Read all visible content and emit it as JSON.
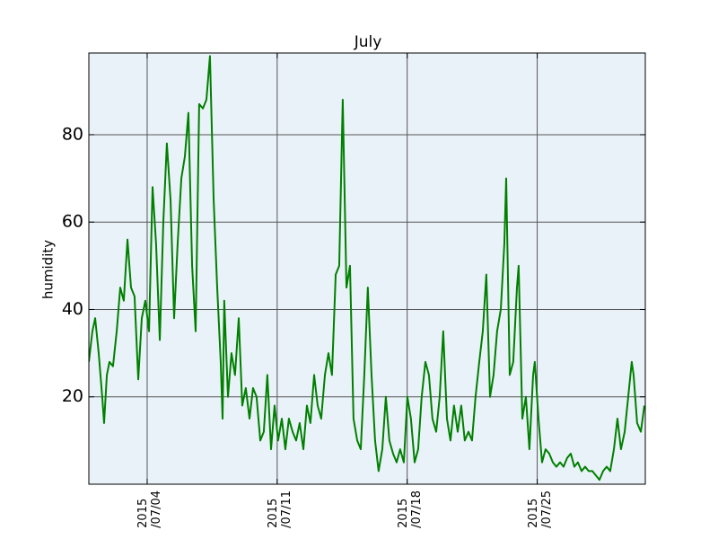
{
  "chart_data": {
    "type": "line",
    "title": "July",
    "ylabel": "humidity",
    "color": "#008000",
    "background": "#eaf2f9",
    "grid": true,
    "x": [
      0.86,
      1.05,
      1.2,
      1.39,
      1.58,
      1.68,
      1.83,
      1.97,
      2.16,
      2.36,
      2.55,
      2.74,
      2.94,
      3.13,
      3.32,
      3.52,
      3.71,
      3.9,
      4.1,
      4.29,
      4.48,
      4.68,
      4.87,
      5.06,
      5.26,
      5.45,
      5.64,
      5.84,
      6.03,
      6.22,
      6.42,
      6.61,
      6.8,
      7.0,
      7.19,
      7.38,
      7.58,
      7.77,
      7.96,
      8.06,
      8.15,
      8.35,
      8.54,
      8.73,
      8.93,
      9.12,
      9.31,
      9.51,
      9.7,
      9.89,
      10.09,
      10.28,
      10.47,
      10.67,
      10.86,
      11.05,
      11.25,
      11.44,
      11.63,
      11.83,
      12.02,
      12.21,
      12.41,
      12.6,
      12.79,
      12.99,
      13.18,
      13.37,
      13.57,
      13.76,
      13.95,
      14.15,
      14.34,
      14.53,
      14.73,
      14.92,
      15.11,
      15.31,
      15.5,
      15.69,
      15.88,
      16.08,
      16.27,
      16.46,
      16.66,
      16.85,
      17.04,
      17.24,
      17.43,
      17.62,
      17.82,
      18.01,
      18.2,
      18.4,
      18.59,
      18.78,
      18.98,
      19.17,
      19.36,
      19.56,
      19.75,
      19.94,
      20.14,
      20.33,
      20.52,
      20.72,
      20.91,
      21.1,
      21.3,
      21.49,
      21.68,
      21.88,
      22.07,
      22.26,
      22.46,
      22.65,
      22.84,
      23.04,
      23.23,
      23.33,
      23.52,
      23.71,
      23.91,
      24.0,
      24.2,
      24.39,
      24.58,
      24.78,
      24.87,
      25.07,
      25.26,
      25.45,
      25.65,
      25.84,
      26.03,
      26.23,
      26.42,
      26.61,
      26.81,
      27.0,
      27.19,
      27.39,
      27.58,
      27.77,
      27.97,
      28.16,
      28.35,
      28.55,
      28.74,
      28.93,
      29.13,
      29.32,
      29.51,
      29.71,
      29.9,
      30.09,
      30.19,
      30.38,
      30.58,
      30.77
    ],
    "values": [
      28,
      35,
      38,
      30,
      20,
      14,
      25,
      28,
      27,
      35,
      45,
      42,
      56,
      45,
      43,
      24,
      38,
      42,
      35,
      68,
      55,
      33,
      60,
      78,
      65,
      38,
      55,
      70,
      75,
      85,
      50,
      35,
      87,
      86,
      88,
      98,
      65,
      45,
      28,
      15,
      42,
      20,
      30,
      25,
      38,
      18,
      22,
      15,
      22,
      20,
      10,
      12,
      25,
      8,
      18,
      10,
      15,
      8,
      15,
      12,
      10,
      14,
      8,
      18,
      14,
      25,
      18,
      15,
      25,
      30,
      25,
      48,
      50,
      88,
      45,
      50,
      15,
      10,
      8,
      25,
      45,
      25,
      10,
      3,
      8,
      20,
      10,
      7,
      5,
      8,
      5,
      20,
      15,
      5,
      8,
      20,
      28,
      25,
      15,
      12,
      20,
      35,
      15,
      10,
      18,
      12,
      18,
      10,
      12,
      10,
      20,
      28,
      35,
      48,
      20,
      25,
      35,
      40,
      55,
      70,
      25,
      28,
      45,
      50,
      15,
      20,
      8,
      25,
      28,
      15,
      5,
      8,
      7,
      5,
      4,
      5,
      4,
      6,
      7,
      4,
      5,
      3,
      4,
      3,
      3,
      2,
      1,
      3,
      4,
      3,
      8,
      15,
      8,
      12,
      20,
      28,
      25,
      14,
      12,
      18
    ],
    "xlim": [
      0.86,
      30.82
    ],
    "xticks": [
      {
        "value": 4,
        "label": "2015\n/07/04"
      },
      {
        "value": 11,
        "label": "2015\n/07/11"
      },
      {
        "value": 18,
        "label": "2015\n/07/18"
      },
      {
        "value": 25,
        "label": "2015\n/07/25"
      }
    ],
    "ylim": [
      0,
      98.7
    ],
    "yticks": [
      20,
      40,
      60,
      80
    ]
  }
}
